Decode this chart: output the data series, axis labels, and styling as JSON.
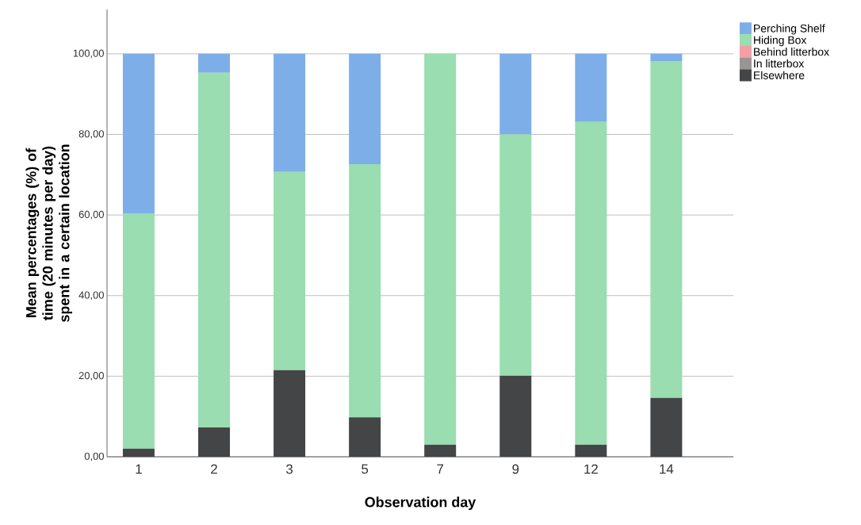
{
  "chart_data": {
    "type": "bar",
    "stacked": true,
    "xlabel": "Observation day",
    "ylabel": "Mean percentages (%) of time (20 minutes per day) spent in a certain location",
    "categories": [
      "1",
      "2",
      "3",
      "5",
      "7",
      "9",
      "12",
      "14"
    ],
    "series": [
      {
        "name": "Elsewhere",
        "color": "#444547",
        "values": [
          2.0,
          7.3,
          21.5,
          9.8,
          3.0,
          20.1,
          3.0,
          14.6
        ]
      },
      {
        "name": "In litterbox",
        "color": "#999594",
        "values": [
          0,
          0,
          0,
          0,
          0,
          0,
          0,
          0
        ]
      },
      {
        "name": "Behind litterbox",
        "color": "#f59ea5",
        "values": [
          0,
          0,
          0,
          0,
          0,
          0,
          0,
          0
        ]
      },
      {
        "name": "Hiding Box",
        "color": "#99ddb0",
        "values": [
          58.4,
          88.0,
          49.2,
          62.8,
          97.0,
          59.9,
          80.1,
          83.6
        ]
      },
      {
        "name": "Perching Shelf",
        "color": "#7eaee8",
        "values": [
          39.6,
          4.7,
          29.3,
          27.4,
          0,
          20.0,
          16.9,
          1.8
        ]
      }
    ],
    "ylim": [
      0,
      111
    ],
    "yticks": [
      {
        "value": 0,
        "label": "0,00"
      },
      {
        "value": 20,
        "label": "20,00"
      },
      {
        "value": 40,
        "label": "40,00"
      },
      {
        "value": 60,
        "label": "60,00"
      },
      {
        "value": 80,
        "label": "80,00"
      },
      {
        "value": 100,
        "label": "100,00"
      }
    ],
    "grid": "y",
    "legend": "top right"
  }
}
